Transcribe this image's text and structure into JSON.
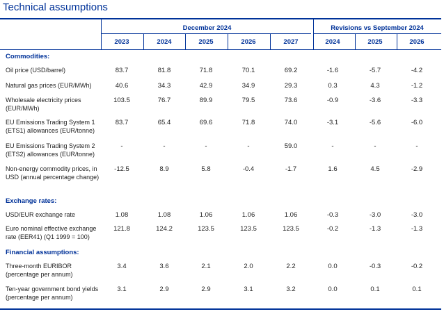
{
  "title": "Technical assumptions",
  "header": {
    "group_december": "December 2024",
    "group_revisions": "Revisions vs September 2024",
    "years": [
      "2023",
      "2024",
      "2025",
      "2026",
      "2027",
      "2024",
      "2025",
      "2026"
    ]
  },
  "sections": [
    {
      "heading": "Commodities:",
      "rows": [
        {
          "label": "Oil price (USD/barrel)",
          "values": [
            "83.7",
            "81.8",
            "71.8",
            "70.1",
            "69.2",
            "-1.6",
            "-5.7",
            "-4.2"
          ]
        },
        {
          "label": "Natural gas prices (EUR/MWh)",
          "values": [
            "40.6",
            "34.3",
            "42.9",
            "34.9",
            "29.3",
            "0.3",
            "4.3",
            "-1.2"
          ]
        },
        {
          "label": "Wholesale electricity prices (EUR/MWh)",
          "values": [
            "103.5",
            "76.7",
            "89.9",
            "79.5",
            "73.6",
            "-0.9",
            "-3.6",
            "-3.3"
          ]
        },
        {
          "label": "EU Emissions Trading System 1 (ETS1) allowances (EUR/tonne)",
          "values": [
            "83.7",
            "65.4",
            "69.6",
            "71.8",
            "74.0",
            "-3.1",
            "-5.6",
            "-6.0"
          ]
        },
        {
          "label": "EU Emissions Trading System 2 (ETS2) allowances (EUR/tonne)",
          "values": [
            "-",
            "-",
            "-",
            "-",
            "59.0",
            "-",
            "-",
            "-"
          ]
        },
        {
          "label": "Non-energy commodity prices, in USD (annual percentage change)",
          "values": [
            "-12.5",
            "8.9",
            "5.8",
            "-0.4",
            "-1.7",
            "1.6",
            "4.5",
            "-2.9"
          ]
        }
      ]
    },
    {
      "heading": "Exchange rates:",
      "rows": [
        {
          "label": "USD/EUR exchange rate",
          "values": [
            "1.08",
            "1.08",
            "1.06",
            "1.06",
            "1.06",
            "-0.3",
            "-3.0",
            "-3.0"
          ]
        },
        {
          "label": "Euro nominal effective exchange rate (EER41) (Q1 1999 = 100)",
          "values": [
            "121.8",
            "124.2",
            "123.5",
            "123.5",
            "123.5",
            "-0.2",
            "-1.3",
            "-1.3"
          ]
        }
      ]
    },
    {
      "heading": "Financial assumptions:",
      "rows": [
        {
          "label": "Three-month EURIBOR (percentage per annum)",
          "values": [
            "3.4",
            "3.6",
            "2.1",
            "2.0",
            "2.2",
            "0.0",
            "-0.3",
            "-0.2"
          ]
        },
        {
          "label": "Ten-year government bond yields (percentage per annum)",
          "values": [
            "3.1",
            "2.9",
            "2.9",
            "3.1",
            "3.2",
            "0.0",
            "0.1",
            "0.1"
          ]
        }
      ]
    }
  ],
  "colors": {
    "accent": "#003299",
    "text": "#222222"
  }
}
